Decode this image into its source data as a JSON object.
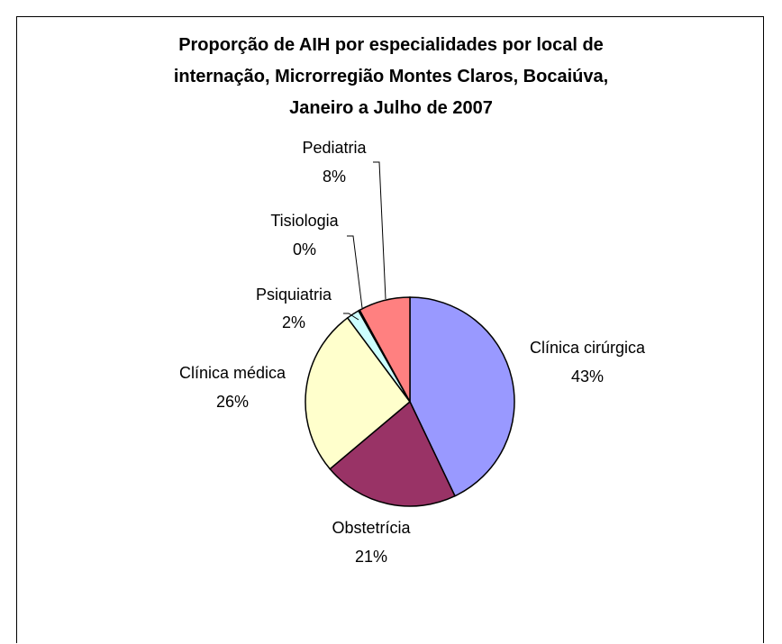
{
  "chart_data": {
    "type": "pie",
    "title_lines": [
      "Proporção de AIH por especialidades por local de",
      "internação, Microrregião Montes Claros, Bocaiúva,",
      "Janeiro a Julho de 2007"
    ],
    "slices": [
      {
        "name": "Clínica cirúrgica",
        "value": 43,
        "label": "43%",
        "color": "#9999ff"
      },
      {
        "name": "Obstetrícia",
        "value": 21,
        "label": "21%",
        "color": "#993366"
      },
      {
        "name": "Clínica médica",
        "value": 26,
        "label": "26%",
        "color": "#ffffcc"
      },
      {
        "name": "Psiquiatria",
        "value": 2,
        "label": "2%",
        "color": "#ccffff"
      },
      {
        "name": "Tisiologia",
        "value": 0.2,
        "label": "0%",
        "color": "#660066"
      },
      {
        "name": "Pediatria",
        "value": 8,
        "label": "8%",
        "color": "#ff8080"
      }
    ]
  }
}
